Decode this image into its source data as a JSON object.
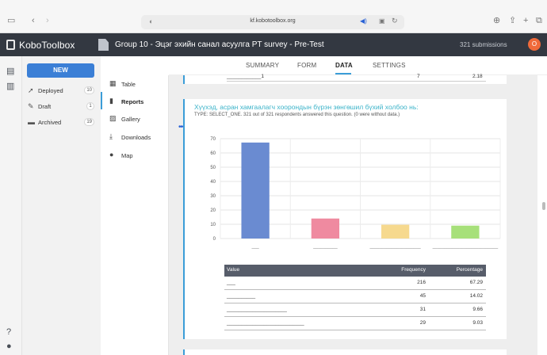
{
  "browser": {
    "url": "kf.kobotoolbox.org"
  },
  "header": {
    "logo": "KoboToolbox",
    "project_title": "Group 10 - Эцэг эхийн санал асуулга PT survey - Pre-Test",
    "submissions": "321 submissions",
    "avatar_initial": "O"
  },
  "sidebar": {
    "new_label": "NEW",
    "items": [
      {
        "label": "Deployed",
        "count": "10",
        "icon": "rocket-icon"
      },
      {
        "label": "Draft",
        "count": "1",
        "icon": "draft-icon"
      },
      {
        "label": "Archived",
        "count": "19",
        "icon": "archive-icon"
      }
    ]
  },
  "tabs": [
    "SUMMARY",
    "FORM",
    "DATA",
    "SETTINGS"
  ],
  "active_tab": "DATA",
  "report_nav": [
    {
      "label": "Table",
      "icon": "table-icon"
    },
    {
      "label": "Reports",
      "icon": "reports-icon"
    },
    {
      "label": "Gallery",
      "icon": "gallery-icon"
    },
    {
      "label": "Downloads",
      "icon": "download-icon"
    },
    {
      "label": "Map",
      "icon": "map-pin-icon"
    }
  ],
  "active_report": "Reports",
  "prev_row": {
    "value": "____________1",
    "frequency": "7",
    "percentage": "2.18"
  },
  "question": {
    "title": "Хүүхэд, асран хамгаалагч хоорондын бүрэн зөнгөшил бүхий холбоо нь:",
    "meta": "TYPE: SELECT_ONE. 321 out of 321 respondents answered this question. (0 were without data.)"
  },
  "chart_data": {
    "type": "bar",
    "categories": [
      "___",
      "__________",
      "_____________________",
      "___________________________"
    ],
    "values": [
      67.29,
      14.02,
      9.66,
      9.03
    ],
    "colors": [
      "#6a8bd1",
      "#ef8aa0",
      "#f6d98e",
      "#a7e07a"
    ],
    "ylim": [
      0,
      70
    ],
    "yticks": [
      0,
      10,
      20,
      30,
      40,
      50,
      60,
      70
    ],
    "grid": true
  },
  "table": {
    "headers": [
      "Value",
      "Frequency",
      "Percentage"
    ],
    "rows": [
      {
        "value": "___",
        "frequency": "216",
        "percentage": "67.29"
      },
      {
        "value": "__________",
        "frequency": "45",
        "percentage": "14.02"
      },
      {
        "value": "_____________________",
        "frequency": "31",
        "percentage": "9.66"
      },
      {
        "value": "___________________________",
        "frequency": "29",
        "percentage": "9.03"
      }
    ]
  }
}
